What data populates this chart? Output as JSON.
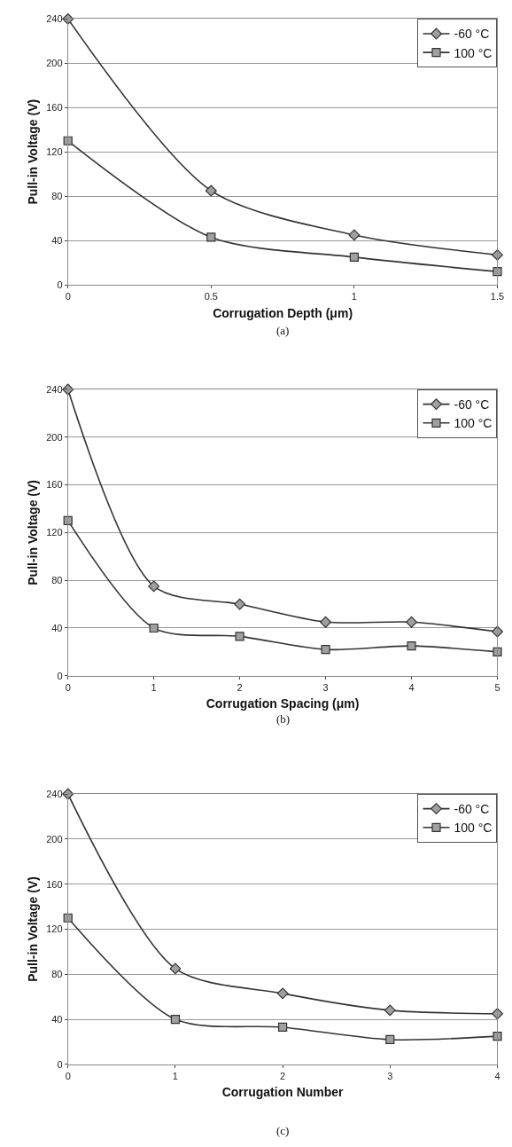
{
  "chart_data": [
    {
      "type": "line",
      "xlabel": "Corrugation Depth (μm)",
      "ylabel": "Pull-in Voltage (V)",
      "x": [
        0,
        0.5,
        1,
        1.5
      ],
      "xlim": [
        0,
        1.5
      ],
      "xticks": [
        0,
        0.5,
        1,
        1.5
      ],
      "ylim": [
        0,
        240
      ],
      "yticks": [
        0,
        40,
        80,
        120,
        160,
        200,
        240
      ],
      "grid": "y",
      "legend": "top right",
      "line_style": "solid",
      "annotations": [
        "(a)"
      ],
      "series": [
        {
          "name": "-60 °C",
          "color": "#333333",
          "marker": "diamond",
          "values": [
            240,
            85,
            45,
            27
          ]
        },
        {
          "name": "100 °C",
          "color": "#333333",
          "marker": "square",
          "values": [
            130,
            43,
            25,
            12
          ]
        }
      ]
    },
    {
      "type": "line",
      "xlabel": "Corrugation Spacing (μm)",
      "ylabel": "Pull-in Voltage (V)",
      "x": [
        0,
        1,
        2,
        3,
        4,
        5
      ],
      "xlim": [
        0,
        5
      ],
      "xticks": [
        0,
        1,
        2,
        3,
        4,
        5
      ],
      "ylim": [
        0,
        240
      ],
      "yticks": [
        0,
        40,
        80,
        120,
        160,
        200,
        240
      ],
      "grid": "y",
      "legend": "top right",
      "line_style": "solid",
      "annotations": [
        "(b)"
      ],
      "series": [
        {
          "name": "-60 °C",
          "color": "#333333",
          "marker": "diamond",
          "values": [
            240,
            75,
            60,
            45,
            45,
            37
          ]
        },
        {
          "name": "100 °C",
          "color": "#333333",
          "marker": "square",
          "values": [
            130,
            40,
            33,
            22,
            25,
            20
          ]
        }
      ]
    },
    {
      "type": "line",
      "xlabel": "Corrugation Number",
      "ylabel": "Pull-in Voltage (V)",
      "x": [
        0,
        1,
        2,
        3,
        4
      ],
      "xlim": [
        0,
        4
      ],
      "xticks": [
        0,
        1,
        2,
        3,
        4
      ],
      "ylim": [
        0,
        240
      ],
      "yticks": [
        0,
        40,
        80,
        120,
        160,
        200,
        240
      ],
      "grid": "y",
      "legend": "top right",
      "line_style": "solid",
      "annotations": [
        "(c)"
      ],
      "series": [
        {
          "name": "-60 °C",
          "color": "#333333",
          "marker": "diamond",
          "values": [
            240,
            85,
            63,
            48,
            45
          ]
        },
        {
          "name": "100 °C",
          "color": "#333333",
          "marker": "square",
          "values": [
            130,
            40,
            33,
            22,
            25
          ]
        }
      ]
    }
  ]
}
